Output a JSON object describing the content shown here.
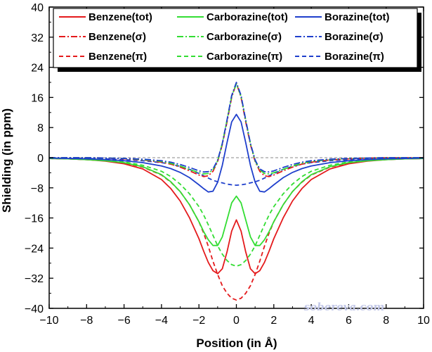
{
  "chart_data": {
    "type": "line",
    "xlabel": "Position (in Å)",
    "ylabel": "Shielding (in ppm)",
    "xlim": [
      -10,
      10
    ],
    "ylim": [
      -40,
      40
    ],
    "xticks": [
      -10,
      -8,
      -6,
      -4,
      -2,
      0,
      2,
      4,
      6,
      8,
      10
    ],
    "yticks": [
      -40,
      -32,
      -24,
      -16,
      -8,
      0,
      8,
      16,
      24,
      32,
      40
    ],
    "tick_labels_x": [
      "−10",
      "−8",
      "−6",
      "−4",
      "−2",
      "0",
      "2",
      "4",
      "6",
      "8",
      "10"
    ],
    "tick_labels_y": [
      "−40",
      "−32",
      "−24",
      "−16",
      "−8",
      "0",
      "8",
      "16",
      "24",
      "32",
      "40"
    ],
    "legend_position": "top",
    "watermark": "sobereva.com",
    "x": [
      -10,
      -9,
      -8,
      -7,
      -6,
      -5,
      -4,
      -3.5,
      -3,
      -2.5,
      -2,
      -1.75,
      -1.5,
      -1.25,
      -1,
      -0.75,
      -0.5,
      -0.25,
      0,
      0.25,
      0.5,
      0.75,
      1,
      1.25,
      1.5,
      1.75,
      2,
      2.5,
      3,
      3.5,
      4,
      5,
      6,
      7,
      8,
      9,
      10
    ],
    "series": [
      {
        "name": "Benzene(tot)",
        "color": "#e41a1c",
        "dash": "solid",
        "values": [
          -0.2,
          -0.3,
          -0.5,
          -0.9,
          -1.6,
          -3.0,
          -5.8,
          -8.2,
          -11.5,
          -16.0,
          -21.5,
          -24.8,
          -27.8,
          -30.0,
          -30.8,
          -29.5,
          -25.0,
          -19.5,
          -16.5,
          -19.5,
          -25.0,
          -29.5,
          -30.8,
          -30.0,
          -27.8,
          -24.8,
          -21.5,
          -16.0,
          -11.5,
          -8.2,
          -5.8,
          -3.0,
          -1.6,
          -0.9,
          -0.5,
          -0.3,
          -0.2
        ]
      },
      {
        "name": "Carborazine(tot)",
        "color": "#33dd33",
        "dash": "solid",
        "values": [
          -0.2,
          -0.3,
          -0.5,
          -0.8,
          -1.3,
          -2.4,
          -4.5,
          -6.4,
          -9.0,
          -12.5,
          -17.0,
          -19.6,
          -21.8,
          -23.3,
          -23.3,
          -21.0,
          -16.5,
          -12.0,
          -10.2,
          -12.0,
          -16.5,
          -21.0,
          -23.3,
          -23.3,
          -21.8,
          -19.6,
          -17.0,
          -12.5,
          -9.0,
          -6.4,
          -4.5,
          -2.4,
          -1.3,
          -0.8,
          -0.5,
          -0.3,
          -0.2
        ]
      },
      {
        "name": "Borazine(tot)",
        "color": "#1f3fcc",
        "dash": "solid",
        "values": [
          -0.1,
          -0.2,
          -0.3,
          -0.5,
          -0.8,
          -1.3,
          -2.2,
          -2.9,
          -3.9,
          -5.3,
          -7.2,
          -8.2,
          -9.1,
          -8.9,
          -6.5,
          -2.0,
          4.0,
          9.5,
          11.5,
          9.5,
          4.0,
          -2.0,
          -6.5,
          -8.9,
          -9.1,
          -8.2,
          -7.2,
          -5.3,
          -3.9,
          -2.9,
          -2.2,
          -1.3,
          -0.8,
          -0.5,
          -0.3,
          -0.2,
          -0.1
        ]
      },
      {
        "name": "Benzene(σ)",
        "color": "#e41a1c",
        "dash": "dashdot",
        "values": [
          0,
          0,
          0,
          -0.1,
          -0.3,
          -0.6,
          -1.2,
          -1.7,
          -2.5,
          -3.5,
          -4.6,
          -5.0,
          -4.8,
          -3.6,
          -1.0,
          3.5,
          9.5,
          16.0,
          19.8,
          16.0,
          9.5,
          3.5,
          -1.0,
          -3.6,
          -4.8,
          -5.0,
          -4.6,
          -3.5,
          -2.5,
          -1.7,
          -1.2,
          -0.6,
          -0.3,
          -0.1,
          0,
          0,
          0
        ]
      },
      {
        "name": "Carborazine(σ)",
        "color": "#33dd33",
        "dash": "dashdot",
        "values": [
          0,
          0,
          0,
          -0.1,
          -0.2,
          -0.5,
          -1.0,
          -1.5,
          -2.2,
          -3.1,
          -4.0,
          -4.3,
          -4.2,
          -3.2,
          -0.8,
          3.8,
          10.0,
          16.3,
          19.6,
          16.3,
          10.0,
          3.8,
          -0.8,
          -3.2,
          -4.2,
          -4.3,
          -4.0,
          -3.1,
          -2.2,
          -1.5,
          -1.0,
          -0.5,
          -0.2,
          -0.1,
          0,
          0,
          0
        ]
      },
      {
        "name": "Borazine(σ)",
        "color": "#1f3fcc",
        "dash": "dashdot",
        "values": [
          0,
          0,
          0,
          -0.1,
          -0.2,
          -0.4,
          -0.8,
          -1.2,
          -1.8,
          -2.6,
          -3.5,
          -3.8,
          -3.7,
          -3.0,
          -0.6,
          3.8,
          10.0,
          16.5,
          20.0,
          16.5,
          10.0,
          3.8,
          -0.6,
          -3.0,
          -3.7,
          -3.8,
          -3.5,
          -2.6,
          -1.8,
          -1.2,
          -0.8,
          -0.4,
          -0.2,
          -0.1,
          0,
          0,
          0
        ]
      },
      {
        "name": "Benzene(π)",
        "color": "#e41a1c",
        "dash": "dashed",
        "values": [
          -0.2,
          -0.3,
          -0.5,
          -0.8,
          -1.4,
          -2.5,
          -4.6,
          -6.5,
          -9.0,
          -12.5,
          -17.0,
          -20.0,
          -23.5,
          -27.5,
          -31.0,
          -34.0,
          -36.0,
          -37.3,
          -37.8,
          -37.3,
          -36.0,
          -34.0,
          -31.0,
          -27.5,
          -23.5,
          -20.0,
          -17.0,
          -12.5,
          -9.0,
          -6.5,
          -4.6,
          -2.5,
          -1.4,
          -0.8,
          -0.5,
          -0.3,
          -0.2
        ]
      },
      {
        "name": "Carborazine(π)",
        "color": "#33dd33",
        "dash": "dashed",
        "values": [
          -0.2,
          -0.3,
          -0.5,
          -0.7,
          -1.1,
          -2.0,
          -3.6,
          -5.0,
          -7.0,
          -9.6,
          -13.0,
          -15.2,
          -17.8,
          -20.6,
          -23.4,
          -25.6,
          -27.3,
          -28.4,
          -28.8,
          -28.4,
          -27.3,
          -25.6,
          -23.4,
          -20.6,
          -17.8,
          -15.2,
          -13.0,
          -9.6,
          -7.0,
          -5.0,
          -3.6,
          -2.0,
          -1.1,
          -0.7,
          -0.5,
          -0.3,
          -0.2
        ]
      },
      {
        "name": "Borazine(π)",
        "color": "#1f3fcc",
        "dash": "dashed",
        "values": [
          -0.1,
          -0.2,
          -0.2,
          -0.3,
          -0.5,
          -0.8,
          -1.3,
          -1.7,
          -2.3,
          -3.1,
          -4.2,
          -4.8,
          -5.4,
          -6.0,
          -6.4,
          -6.7,
          -7.0,
          -7.2,
          -7.3,
          -7.2,
          -7.0,
          -6.7,
          -6.4,
          -6.0,
          -5.4,
          -4.8,
          -4.2,
          -3.1,
          -2.3,
          -1.7,
          -1.3,
          -0.8,
          -0.5,
          -0.3,
          -0.2,
          -0.2,
          -0.1
        ]
      }
    ]
  }
}
